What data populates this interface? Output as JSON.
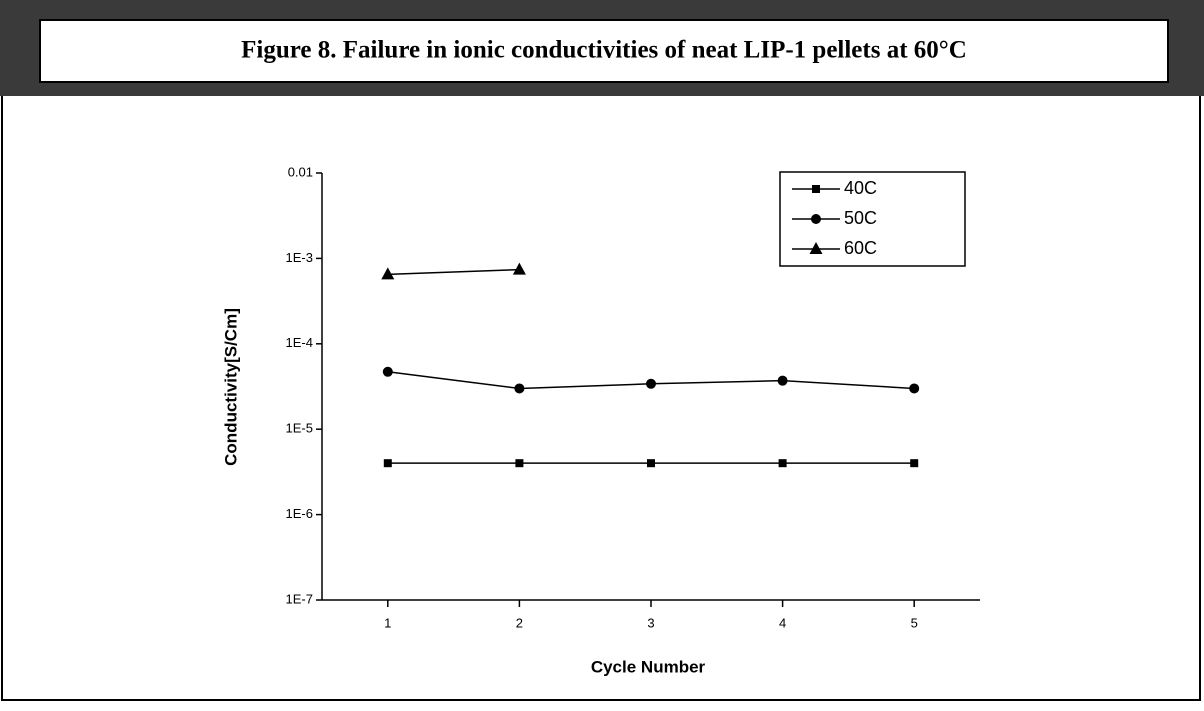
{
  "chart_data": {
    "type": "line",
    "title": "Figure 8.  Failure in ionic conductivities of neat LIP-1 pellets at 60°C",
    "xlabel": "Cycle Number",
    "ylabel": "Conductivity[S/Cm]",
    "x": [
      1,
      2,
      3,
      4,
      5
    ],
    "series": [
      {
        "name": "40C",
        "color": "#000000",
        "marker": "square",
        "values": [
          4e-06,
          4e-06,
          4e-06,
          4e-06,
          4e-06
        ]
      },
      {
        "name": "50C",
        "color": "#000000",
        "marker": "circle",
        "values": [
          4.7e-05,
          3e-05,
          3.4e-05,
          3.7e-05,
          3e-05
        ]
      },
      {
        "name": "60C",
        "color": "#000000",
        "marker": "triangle",
        "values": [
          0.00065,
          0.00074,
          null,
          null,
          null
        ]
      }
    ],
    "xlim": [
      0.5,
      5.5
    ],
    "xticks": [
      1,
      2,
      3,
      4,
      5
    ],
    "ylim": [
      1e-07,
      0.01
    ],
    "yticks": [
      {
        "value": 1e-07,
        "label": "1E-7"
      },
      {
        "value": 1e-06,
        "label": "1E-6"
      },
      {
        "value": 1e-05,
        "label": "1E-5"
      },
      {
        "value": 0.0001,
        "label": "1E-4"
      },
      {
        "value": 0.001,
        "label": "1E-3"
      },
      0.01
    ],
    "ylog": true,
    "legend": "upper right"
  }
}
